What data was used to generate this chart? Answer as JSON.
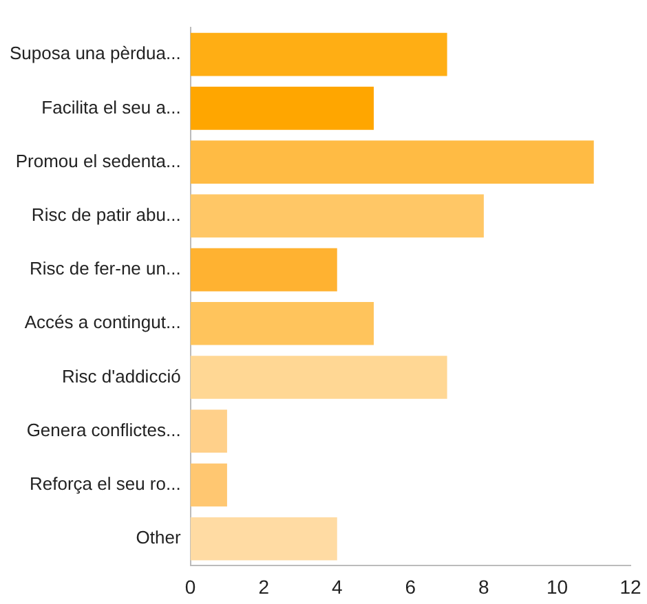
{
  "chart_data": {
    "type": "bar",
    "orientation": "horizontal",
    "categories": [
      "Suposa una pèrdua...",
      "Facilita el seu a...",
      "Promou el sedenta...",
      "Risc de patir abu...",
      "Risc de fer-ne un...",
      "Accés a contingut...",
      "Risc d'addicció",
      "Genera conflictes...",
      "Reforça el seu ro...",
      "Other"
    ],
    "values": [
      7,
      5,
      11,
      8,
      4,
      5,
      7,
      1,
      1,
      4
    ],
    "colors": [
      "#ffae14",
      "#ffa600",
      "#ffbb44",
      "#ffc766",
      "#ffb231",
      "#ffc45c",
      "#ffd794",
      "#ffd08a",
      "#ffc771",
      "#ffdba3"
    ],
    "xlim": [
      0,
      12
    ],
    "xticks": [
      0,
      2,
      4,
      6,
      8,
      10,
      12
    ],
    "grid": false,
    "legend": false
  }
}
